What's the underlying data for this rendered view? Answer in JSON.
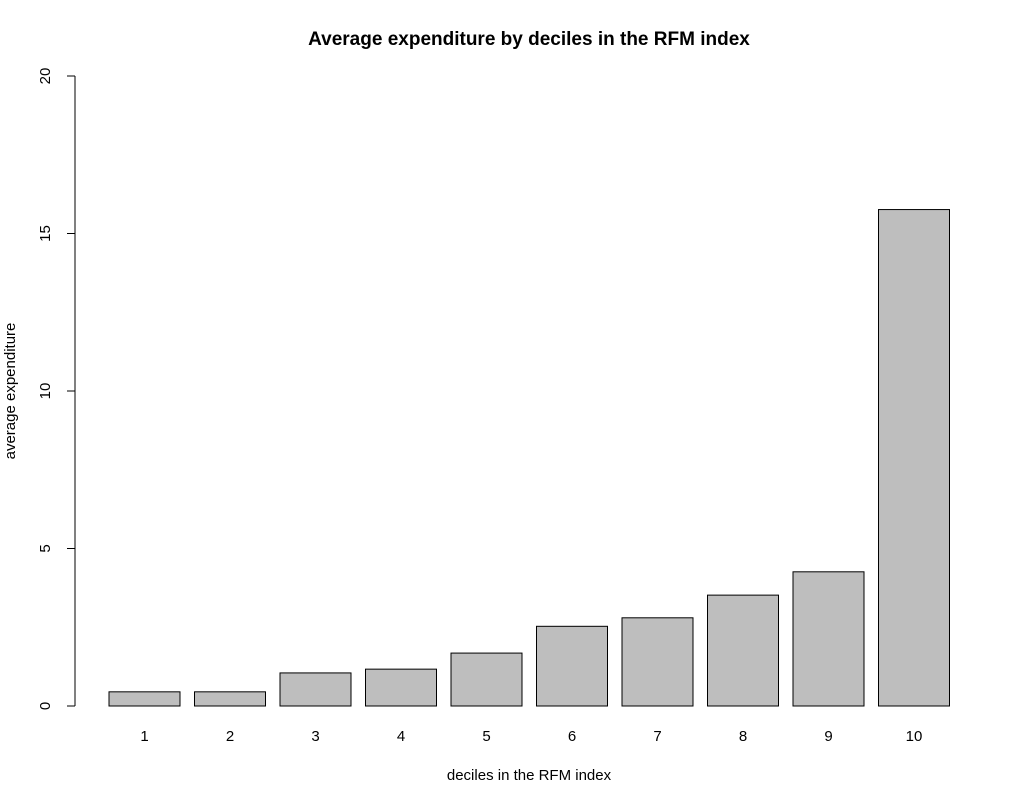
{
  "chart_data": {
    "type": "bar",
    "title": "Average expenditure by deciles in the RFM index",
    "xlabel": "deciles in the RFM index",
    "ylabel": "average expenditure",
    "categories": [
      "1",
      "2",
      "3",
      "4",
      "5",
      "6",
      "7",
      "8",
      "9",
      "10"
    ],
    "values": [
      0.45,
      0.45,
      1.05,
      1.17,
      1.68,
      2.53,
      2.8,
      3.52,
      4.26,
      15.76
    ],
    "ylim": [
      0,
      20
    ],
    "yticks": [
      "0",
      "5",
      "10",
      "15",
      "20"
    ],
    "ytick_values": [
      0,
      5,
      10,
      15,
      20
    ],
    "bar_color": "#bebebe",
    "bar_border_color": "#000000",
    "grid": false,
    "legend": "none"
  }
}
